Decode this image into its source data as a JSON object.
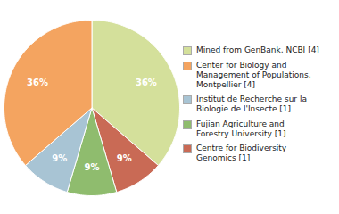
{
  "chart_data": {
    "type": "pie",
    "values": [
      36,
      9,
      9,
      9,
      36
    ],
    "value_labels": [
      "36%",
      "9%",
      "9%",
      "9%",
      "36%"
    ],
    "colors": [
      "#d4e09b",
      "#c96a55",
      "#8fbc6e",
      "#a8c4d4",
      "#f4a460"
    ],
    "data_labels": true,
    "legend": "right",
    "legend_labels": [
      "Mined from GenBank, NCBI [4]",
      "Center for Biology and\nManagement of Populations,\nMontpellier [4]",
      "Institut de Recherche sur la\nBiologie de l'Insecte [1]",
      "Fujian Agriculture and\nForestry University [1]",
      "Centre for Biodiversity\nGenomics [1]"
    ],
    "legend_colors": [
      "#d4e09b",
      "#f4a460",
      "#a8c4d4",
      "#8fbc6e",
      "#c96a55"
    ]
  }
}
